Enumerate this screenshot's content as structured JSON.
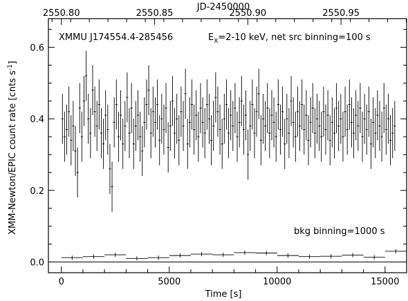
{
  "chart_data": {
    "type": "scatter",
    "xlabel": "Time [s]",
    "ylabel": "XMM-Newton/EPIC count rate [cnts s",
    "ylabel_sup": "-1",
    "ylabel_close": "]",
    "top_axis_label": "JD-2450000",
    "xlim": [
      -600,
      16000
    ],
    "ylim": [
      -0.03,
      0.68
    ],
    "x_ticks": [
      0,
      5000,
      10000,
      15000
    ],
    "x_tick_labels": [
      "0",
      "5000",
      "10000",
      "15000"
    ],
    "y_ticks": [
      0.0,
      0.2,
      0.4,
      0.6
    ],
    "y_tick_labels": [
      "0.0",
      "0.2",
      "0.4",
      "0.6"
    ],
    "top_ticks": [
      0,
      4320,
      8640,
      12960
    ],
    "top_tick_labels": [
      "2550.80",
      "2550.85",
      "2550.90",
      "2550.95"
    ],
    "annotations": {
      "source_name": "XMMU J174554.4-285456",
      "energy_prefix": "E",
      "energy_sub": "X",
      "energy_rest": "=2-10 keV, net src binning=100 s",
      "bkg_label": "bkg binning=1000 s"
    },
    "zero_line": 0,
    "series": [
      {
        "bin_width": 100,
        "x": [
          50,
          150,
          250,
          350,
          450,
          550,
          650,
          750,
          850,
          950,
          1050,
          1150,
          1250,
          1350,
          1450,
          1550,
          1650,
          1750,
          1850,
          1950,
          2050,
          2150,
          2250,
          2350,
          2450,
          2550,
          2650,
          2750,
          2850,
          2950,
          3050,
          3150,
          3250,
          3350,
          3450,
          3550,
          3650,
          3750,
          3850,
          3950,
          4050,
          4150,
          4250,
          4350,
          4450,
          4550,
          4650,
          4750,
          4850,
          4950,
          5050,
          5150,
          5250,
          5350,
          5450,
          5550,
          5650,
          5750,
          5850,
          5950,
          6050,
          6150,
          6250,
          6350,
          6450,
          6550,
          6650,
          6750,
          6850,
          6950,
          7050,
          7150,
          7250,
          7350,
          7450,
          7550,
          7650,
          7750,
          7850,
          7950,
          8050,
          8150,
          8250,
          8350,
          8450,
          8550,
          8650,
          8750,
          8850,
          8950,
          9050,
          9150,
          9250,
          9350,
          9450,
          9550,
          9650,
          9750,
          9850,
          9950,
          10050,
          10150,
          10250,
          10350,
          10450,
          10550,
          10650,
          10750,
          10850,
          10950,
          11050,
          11150,
          11250,
          11350,
          11450,
          11550,
          11650,
          11750,
          11850,
          11950,
          12050,
          12150,
          12250,
          12350,
          12450,
          12550,
          12650,
          12750,
          12850,
          12950,
          13050,
          13150,
          13250,
          13350,
          13450,
          13550,
          13650,
          13750,
          13850,
          13950,
          14050,
          14150,
          14250,
          14350,
          14450,
          14550,
          14650,
          14750,
          14850,
          14950,
          15050,
          15150,
          15250,
          15350,
          15450
        ],
        "y": [
          0.4,
          0.35,
          0.37,
          0.42,
          0.34,
          0.38,
          0.31,
          0.25,
          0.43,
          0.35,
          0.45,
          0.52,
          0.4,
          0.36,
          0.48,
          0.42,
          0.38,
          0.44,
          0.36,
          0.33,
          0.41,
          0.37,
          0.26,
          0.21,
          0.39,
          0.44,
          0.35,
          0.41,
          0.33,
          0.38,
          0.46,
          0.36,
          0.43,
          0.33,
          0.38,
          0.41,
          0.35,
          0.31,
          0.39,
          0.44,
          0.48,
          0.36,
          0.42,
          0.39,
          0.44,
          0.34,
          0.4,
          0.37,
          0.43,
          0.32,
          0.38,
          0.45,
          0.36,
          0.4,
          0.34,
          0.42,
          0.38,
          0.47,
          0.33,
          0.39,
          0.44,
          0.37,
          0.41,
          0.35,
          0.43,
          0.39,
          0.36,
          0.44,
          0.4,
          0.34,
          0.38,
          0.46,
          0.42,
          0.37,
          0.33,
          0.4,
          0.44,
          0.36,
          0.41,
          0.38,
          0.43,
          0.35,
          0.39,
          0.45,
          0.37,
          0.41,
          0.3,
          0.38,
          0.44,
          0.36,
          0.42,
          0.47,
          0.34,
          0.4,
          0.38,
          0.43,
          0.36,
          0.41,
          0.39,
          0.35,
          0.44,
          0.37,
          0.42,
          0.33,
          0.4,
          0.36,
          0.45,
          0.39,
          0.35,
          0.42,
          0.38,
          0.44,
          0.37,
          0.41,
          0.34,
          0.39,
          0.43,
          0.36,
          0.4,
          0.38,
          0.35,
          0.42,
          0.37,
          0.41,
          0.34,
          0.39,
          0.36,
          0.43,
          0.38,
          0.4,
          0.35,
          0.42,
          0.37,
          0.44,
          0.39,
          0.36,
          0.41,
          0.38,
          0.43,
          0.35,
          0.4,
          0.37,
          0.42,
          0.33,
          0.39,
          0.36,
          0.41,
          0.38,
          0.35,
          0.43,
          0.37,
          0.4,
          0.34,
          0.36,
          0.38
        ],
        "yerr": 0.07
      },
      {
        "bin_width": 1000,
        "x": [
          500,
          1500,
          2500,
          3500,
          4500,
          5500,
          6500,
          7500,
          8500,
          9500,
          10500,
          11500,
          12500,
          13500,
          14500,
          15500
        ],
        "y": [
          0.012,
          0.015,
          0.02,
          0.01,
          0.012,
          0.018,
          0.022,
          0.02,
          0.026,
          0.025,
          0.018,
          0.015,
          0.016,
          0.019,
          0.013,
          0.03
        ],
        "yerr": 0.006
      }
    ]
  }
}
